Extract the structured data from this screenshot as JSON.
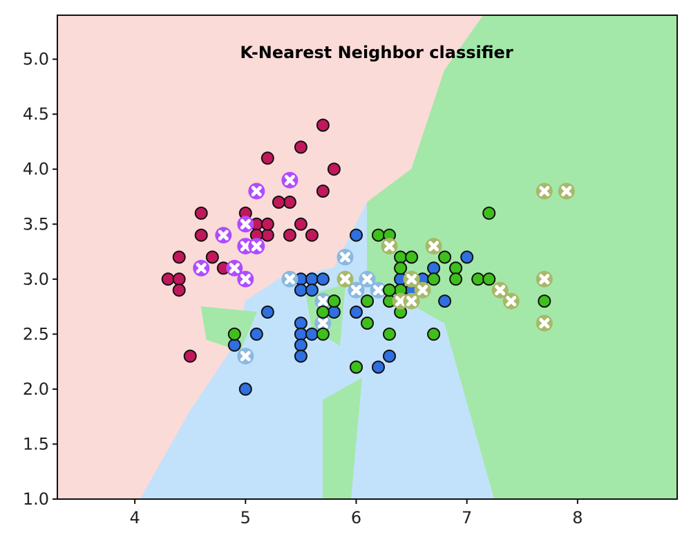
{
  "chart_data": {
    "type": "scatter",
    "title": "K-Nearest Neighbor classifier",
    "xlabel": "",
    "ylabel": "",
    "xlim": [
      3.3,
      8.9
    ],
    "ylim": [
      1.0,
      5.4
    ],
    "x_ticks": [
      4,
      5,
      6,
      7,
      8
    ],
    "y_ticks": [
      1.0,
      1.5,
      2.0,
      2.5,
      3.0,
      3.5,
      4.0,
      4.5,
      5.0
    ],
    "x_tick_labels": [
      "4",
      "5",
      "6",
      "7",
      "8"
    ],
    "y_tick_labels": [
      "1.0",
      "1.5",
      "2.0",
      "2.5",
      "3.0",
      "3.5",
      "4.0",
      "4.5",
      "5.0"
    ],
    "grid": false,
    "legend": "none",
    "colors": {
      "region_class_0": "#fadbd8",
      "region_class_1": "#c2e2fb",
      "region_class_2": "#a3e8a8",
      "train_class_0": "#c2185b",
      "train_class_1": "#2f6fe0",
      "train_class_2": "#3fbf1c",
      "test_class_0": "#b04cff",
      "test_class_1": "#8ab8e0",
      "test_class_2": "#a8b86a"
    },
    "regions": [
      {
        "class": 0,
        "polygon": [
          [
            3.3,
            1.0
          ],
          [
            4.05,
            1.0
          ],
          [
            4.5,
            1.8
          ],
          [
            4.9,
            2.4
          ],
          [
            5.0,
            2.8
          ],
          [
            5.3,
            3.0
          ],
          [
            5.8,
            3.1
          ],
          [
            6.1,
            3.7
          ],
          [
            6.5,
            4.0
          ],
          [
            6.6,
            4.3
          ],
          [
            6.8,
            4.9
          ],
          [
            7.15,
            5.4
          ],
          [
            3.3,
            5.4
          ]
        ]
      },
      {
        "class": 1,
        "polygon": [
          [
            4.05,
            1.0
          ],
          [
            4.5,
            1.8
          ],
          [
            4.9,
            2.4
          ],
          [
            5.0,
            2.8
          ],
          [
            5.3,
            3.0
          ],
          [
            5.8,
            3.1
          ],
          [
            6.1,
            3.7
          ],
          [
            6.1,
            3.0
          ],
          [
            6.8,
            2.6
          ],
          [
            7.25,
            1.0
          ]
        ]
      },
      {
        "class": 2,
        "polygon": [
          [
            6.1,
            3.7
          ],
          [
            6.5,
            4.0
          ],
          [
            6.6,
            4.3
          ],
          [
            6.8,
            4.9
          ],
          [
            7.15,
            5.4
          ],
          [
            8.9,
            5.4
          ],
          [
            8.9,
            1.0
          ],
          [
            7.25,
            1.0
          ],
          [
            6.8,
            2.6
          ],
          [
            6.1,
            3.0
          ]
        ]
      },
      {
        "class": 2,
        "polygon": [
          [
            4.6,
            2.75
          ],
          [
            5.1,
            2.7
          ],
          [
            4.95,
            2.35
          ],
          [
            4.65,
            2.45
          ]
        ]
      },
      {
        "class": 2,
        "polygon": [
          [
            5.55,
            2.85
          ],
          [
            5.9,
            2.95
          ],
          [
            5.85,
            2.4
          ],
          [
            5.6,
            2.55
          ]
        ]
      },
      {
        "class": 2,
        "polygon": [
          [
            5.7,
            1.9
          ],
          [
            6.05,
            2.1
          ],
          [
            5.95,
            1.0
          ],
          [
            5.7,
            1.0
          ]
        ]
      }
    ],
    "series": [
      {
        "class": 0,
        "kind": "train",
        "x": [
          5.7,
          5.4,
          5.2,
          5.5,
          5.8,
          5.1,
          5.4,
          5.3,
          5.0,
          4.6,
          4.6,
          5.1,
          5.2,
          5.5,
          5.0,
          4.9,
          4.8,
          5.0,
          4.4,
          4.3,
          4.4,
          4.5,
          5.1,
          4.7,
          5.4,
          5.7,
          4.4,
          5.6,
          5.2
        ],
        "y": [
          4.4,
          3.9,
          4.1,
          4.2,
          4.0,
          3.8,
          3.7,
          3.7,
          3.6,
          3.6,
          3.4,
          3.5,
          3.4,
          3.5,
          3.5,
          3.1,
          3.1,
          3.0,
          3.2,
          3.0,
          3.0,
          2.3,
          3.4,
          3.2,
          3.4,
          3.8,
          2.9,
          3.4,
          3.5
        ]
      },
      {
        "class": 0,
        "kind": "test",
        "x": [
          5.1,
          5.4,
          4.8,
          5.0,
          5.0,
          5.1,
          4.9,
          4.6,
          5.0
        ],
        "y": [
          3.8,
          3.9,
          3.4,
          3.5,
          3.3,
          3.3,
          3.1,
          3.1,
          3.0
        ]
      },
      {
        "class": 1,
        "kind": "train",
        "x": [
          6.0,
          5.5,
          5.6,
          5.7,
          5.5,
          5.6,
          5.8,
          6.0,
          6.1,
          6.2,
          5.2,
          5.1,
          5.5,
          5.5,
          5.5,
          5.6,
          5.7,
          5.8,
          4.9,
          5.0,
          6.2,
          6.3,
          6.4,
          6.6,
          6.8,
          6.7,
          6.9,
          7.0,
          6.5,
          5.9,
          6.3,
          5.7,
          5.5
        ],
        "y": [
          3.4,
          3.0,
          3.0,
          3.0,
          2.9,
          2.9,
          2.8,
          2.7,
          2.8,
          2.9,
          2.7,
          2.5,
          2.6,
          2.5,
          2.4,
          2.5,
          2.6,
          2.7,
          2.4,
          2.0,
          2.2,
          2.3,
          3.0,
          3.0,
          2.8,
          3.1,
          3.1,
          3.2,
          2.9,
          3.0,
          2.9,
          2.8,
          2.3
        ]
      },
      {
        "class": 1,
        "kind": "test",
        "x": [
          5.4,
          5.9,
          5.7,
          5.7,
          6.0,
          6.1,
          6.2,
          5.0
        ],
        "y": [
          3.0,
          3.2,
          2.8,
          2.6,
          2.9,
          3.0,
          2.9,
          2.3
        ]
      },
      {
        "class": 2,
        "kind": "train",
        "x": [
          6.2,
          6.3,
          7.2,
          6.3,
          6.4,
          6.5,
          6.4,
          6.7,
          6.8,
          6.9,
          7.1,
          7.2,
          6.9,
          7.7,
          7.7,
          6.3,
          6.5,
          6.4,
          6.1,
          6.7,
          6.0,
          6.3,
          5.7,
          5.8,
          5.7,
          4.9,
          6.0,
          6.4,
          6.3,
          6.1
        ],
        "y": [
          3.4,
          3.4,
          3.6,
          3.3,
          3.2,
          3.2,
          3.1,
          3.0,
          3.2,
          3.1,
          3.0,
          3.0,
          3.0,
          3.0,
          2.8,
          2.8,
          2.8,
          2.7,
          2.6,
          2.5,
          2.2,
          2.5,
          2.5,
          2.8,
          2.7,
          2.5,
          2.2,
          2.9,
          2.9,
          2.8
        ]
      },
      {
        "class": 2,
        "kind": "test",
        "x": [
          7.7,
          7.9,
          6.7,
          6.3,
          7.7,
          7.3,
          7.4,
          5.9,
          6.5,
          6.4,
          6.5,
          6.6,
          7.7
        ],
        "y": [
          3.8,
          3.8,
          3.3,
          3.3,
          3.0,
          2.9,
          2.8,
          3.0,
          3.0,
          2.8,
          2.8,
          2.9,
          2.6
        ]
      }
    ]
  }
}
